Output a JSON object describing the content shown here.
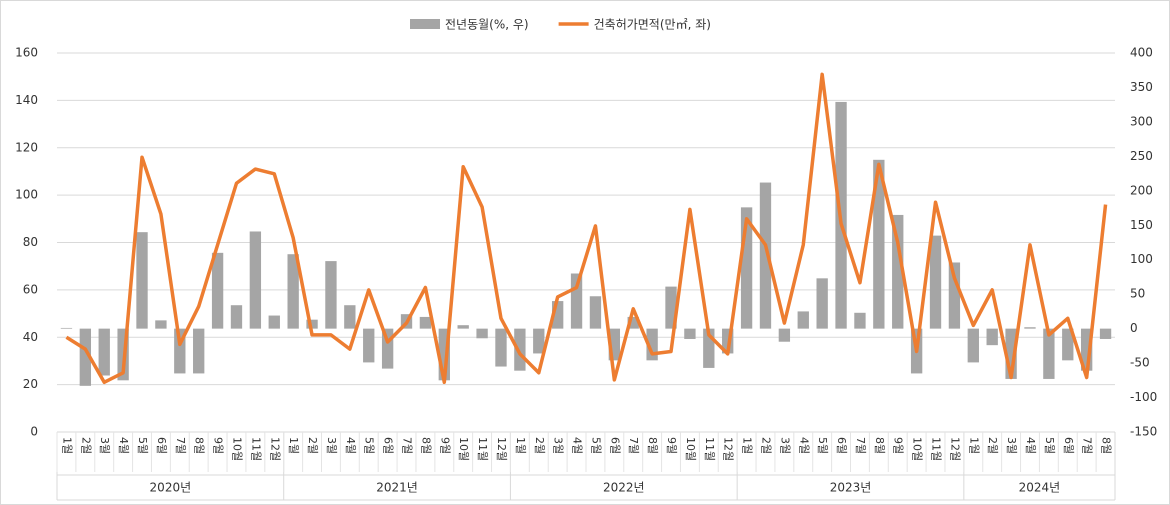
{
  "chart_data": {
    "type": "bar-line",
    "categories": [
      "1월",
      "2월",
      "3월",
      "4월",
      "5월",
      "6월",
      "7월",
      "8월",
      "9월",
      "10월",
      "11월",
      "12월",
      "1월",
      "2월",
      "3월",
      "4월",
      "5월",
      "6월",
      "7월",
      "8월",
      "9월",
      "10월",
      "11월",
      "12월",
      "1월",
      "2월",
      "3월",
      "4월",
      "5월",
      "6월",
      "7월",
      "8월",
      "9월",
      "10월",
      "11월",
      "12월",
      "1월",
      "2월",
      "3월",
      "4월",
      "5월",
      "6월",
      "7월",
      "8월",
      "9월",
      "10월",
      "11월",
      "12월",
      "1월",
      "2월",
      "3월",
      "4월",
      "5월",
      "6월",
      "7월",
      "8월"
    ],
    "groups": [
      "2020년",
      "2021년",
      "2022년",
      "2023년",
      "2024년"
    ],
    "series": [
      {
        "name": "전년동월(%, 우)",
        "type": "bar",
        "axis": "y2",
        "color": "#a5a5a5",
        "values": [
          1,
          -83,
          -68,
          -75,
          140,
          12,
          -65,
          -65,
          110,
          34,
          141,
          19,
          108,
          13,
          98,
          34,
          -49,
          -58,
          21,
          17,
          -75,
          5,
          -14,
          -55,
          -61,
          -36,
          40,
          80,
          47,
          -46,
          17,
          -46,
          61,
          -15,
          -57,
          -36,
          176,
          212,
          -19,
          25,
          73,
          329,
          23,
          245,
          165,
          -65,
          135,
          96,
          -49,
          -24,
          -73,
          2,
          -73,
          -46,
          -61,
          -15
        ]
      },
      {
        "name": "건축허가면적(만㎡, 좌)",
        "type": "line",
        "axis": "y",
        "color": "#ed7d31",
        "values": [
          40,
          35,
          21,
          25,
          116,
          92,
          37,
          53,
          79,
          105,
          111,
          109,
          82,
          41,
          41,
          35,
          60,
          38,
          46,
          61,
          21,
          112,
          95,
          48,
          33,
          25,
          57,
          61,
          87,
          22,
          52,
          33,
          34,
          94,
          41,
          33,
          90,
          79,
          46,
          79,
          151,
          88,
          63,
          113,
          80,
          34,
          97,
          65,
          45,
          60,
          23,
          79,
          41,
          48,
          23,
          96
        ]
      }
    ],
    "ylim": [
      0,
      160
    ],
    "yticks": [
      0,
      20,
      40,
      60,
      80,
      100,
      120,
      140,
      160
    ],
    "y2lim": [
      -150,
      400
    ],
    "y2ticks": [
      -150,
      -100,
      -50,
      0,
      50,
      100,
      150,
      200,
      250,
      300,
      350,
      400
    ],
    "grid": true
  }
}
